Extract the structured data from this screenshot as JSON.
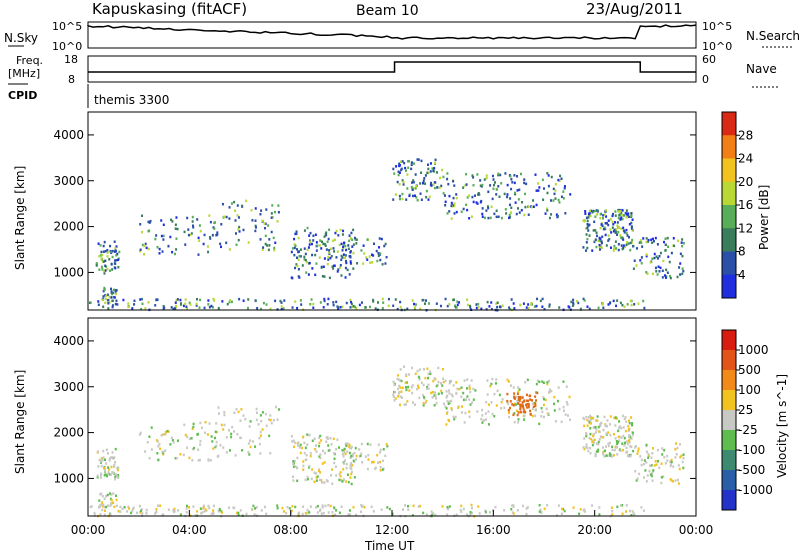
{
  "header": {
    "station": "Kapuskasing (fitACF)",
    "beam": "Beam 10",
    "date": "23/Aug/2011"
  },
  "top_panels": {
    "nsky_label": "N.Sky",
    "nsky_ticks": [
      "10^5",
      "10^0"
    ],
    "nsearch_label": "N.Search",
    "nsearch_ticks": [
      "10^5",
      "10^0"
    ],
    "freq_label": "Freq.",
    "freq_unit": "[MHz]",
    "freq_ticks": [
      "18",
      "8"
    ],
    "nave_label": "Nave",
    "nave_ticks": [
      "60",
      "0"
    ],
    "cpid_label": "CPID",
    "cpid_value": "themis 3300"
  },
  "chart_data": [
    {
      "type": "heatmap",
      "name": "power",
      "ylabel": "Slant Range [km]",
      "y_ticks": [
        "4000",
        "3000",
        "2000",
        "1000"
      ],
      "ylim": [
        180,
        4500
      ],
      "colorbar_label": "Power [dB]",
      "colorbar_ticks": [
        "28",
        "24",
        "20",
        "16",
        "12",
        "8",
        "4"
      ],
      "colorbar_colors": [
        "#1f2fe0",
        "#2a4fa8",
        "#3a7d5c",
        "#58ad58",
        "#b9d836",
        "#f2c21f",
        "#f27f16",
        "#d82a15"
      ]
    },
    {
      "type": "heatmap",
      "name": "velocity",
      "ylabel": "Slant Range [km]",
      "y_ticks": [
        "4000",
        "3000",
        "2000",
        "1000"
      ],
      "ylim": [
        180,
        4500
      ],
      "colorbar_label": "Velocity [m s^-1]",
      "colorbar_ticks": [
        "1000",
        "500",
        "100",
        "25",
        "-25",
        "-100",
        "-500",
        "-1000"
      ],
      "colorbar_colors": [
        "#2332c8",
        "#2a5fa8",
        "#3d8a70",
        "#5ebd4e",
        "#c8c8c4",
        "#f2c21f",
        "#f28a1a",
        "#e25418",
        "#d81c10"
      ]
    }
  ],
  "x_axis": {
    "ticks": [
      "00:00",
      "04:00",
      "08:00",
      "12:00",
      "16:00",
      "20:00",
      "00:00"
    ],
    "label": "Time UT"
  },
  "colors": {
    "power_scatter": "#2a45c0",
    "velocity_scatter": "#c4c4c0",
    "velocity_hot": "#e06a15"
  }
}
